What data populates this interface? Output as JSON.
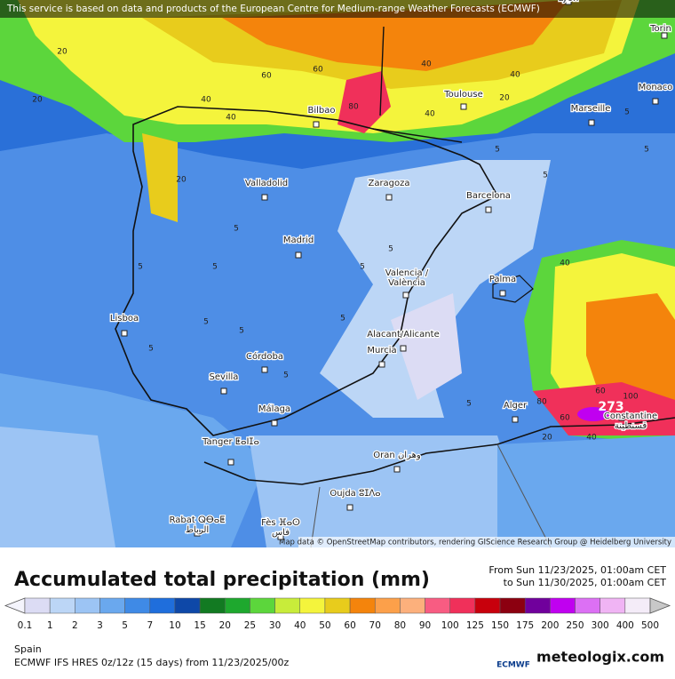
{
  "banner": "This service is based on data and products of the European Centre for Medium-range Weather Forecasts (ECMWF)",
  "attribution": "Map data © OpenStreetMap contributors, rendering GIScience Research Group @ Heidelberg University",
  "title": "Accumulated total precipitation (mm)",
  "period": [
    "From Sun 11/23/2025, 01:00am CET",
    "to Sun 11/30/2025, 01:00am CET"
  ],
  "region": "Spain",
  "model": "ECMWF IFS HRES 0z/12z (15 days) from 11/23/2025/00z",
  "logos": [
    "ECMWF",
    "meteologix.com"
  ],
  "max_label": "273",
  "legend": {
    "values": [
      0.1,
      1,
      2,
      3,
      5,
      7,
      10,
      15,
      20,
      25,
      30,
      40,
      50,
      60,
      70,
      80,
      90,
      100,
      125,
      150,
      175,
      200,
      250,
      300,
      400,
      500
    ],
    "colors": [
      "#dcdcf4",
      "#bcd6f6",
      "#9cc4f4",
      "#6aa8ee",
      "#3f8ae6",
      "#1f6edc",
      "#0e48a8",
      "#127a22",
      "#1ea82e",
      "#5cd63c",
      "#c8ec3a",
      "#f4f43c",
      "#e8cc1c",
      "#f4840c",
      "#fca04a",
      "#fcb07c",
      "#f85c82",
      "#f0305a",
      "#c8000c",
      "#8c0010",
      "#70009c",
      "#c000f0",
      "#dc70f4",
      "#f0b4f4",
      "#f4ecf8",
      "#c8c8c8"
    ]
  },
  "cities": [
    {
      "label": [
        "Lyon"
      ]
    },
    {
      "label": [
        "Torin"
      ]
    },
    {
      "label": [
        "Monaco"
      ]
    },
    {
      "label": [
        "Marseille"
      ]
    },
    {
      "label": [
        "Toulouse"
      ]
    },
    {
      "label": [
        "Bilbao"
      ]
    },
    {
      "label": [
        "Valladolid"
      ]
    },
    {
      "label": [
        "Zaragoza"
      ]
    },
    {
      "label": [
        "Barcelona"
      ]
    },
    {
      "label": [
        "Madrid"
      ]
    },
    {
      "label": [
        "Valencia /",
        "València"
      ]
    },
    {
      "label": [
        "Palma"
      ]
    },
    {
      "label": [
        "Lisboa"
      ]
    },
    {
      "label": [
        "Córdoba"
      ]
    },
    {
      "label": [
        "Sevilla"
      ]
    },
    {
      "label": [
        "Alacant/Alicante"
      ]
    },
    {
      "label": [
        "Murcia"
      ]
    },
    {
      "label": [
        "Málaga"
      ]
    },
    {
      "label": [
        "Tanger ⵟⴰⵏⵊⴰ"
      ]
    },
    {
      "label": [
        "Oran وهران"
      ]
    },
    {
      "label": [
        "Oujda ⵓⵊⴷⴰ"
      ]
    },
    {
      "label": [
        "Rabat ⵕⴱⴰⵟ",
        "الرباط"
      ]
    },
    {
      "label": [
        "Fès ⴼⴰⵙ",
        "فاس"
      ]
    },
    {
      "label": [
        "Alger"
      ]
    },
    {
      "label": [
        "Constantine",
        "قسنطينة"
      ]
    }
  ],
  "contours": [
    20,
    20,
    40,
    40,
    60,
    60,
    80,
    40,
    40,
    40,
    20,
    20,
    5,
    5,
    5,
    5,
    5,
    5,
    5,
    5,
    5,
    5,
    5,
    5,
    40,
    60,
    80,
    100,
    60,
    40,
    20,
    5,
    5,
    5
  ]
}
